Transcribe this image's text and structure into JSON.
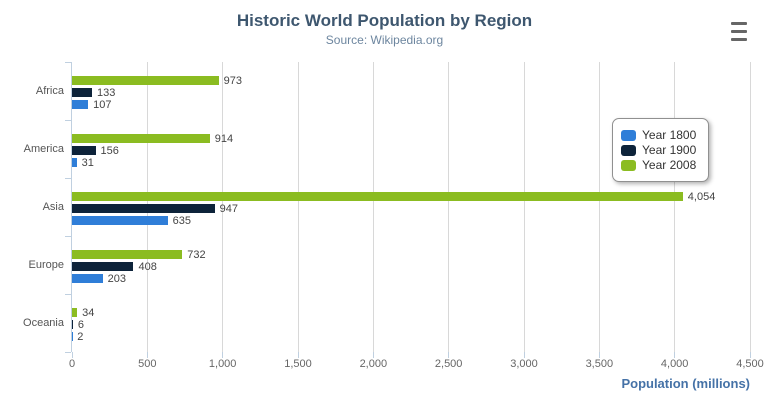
{
  "chart": {
    "title": "Historic World Population by Region",
    "subtitle": "Source: Wikipedia.org",
    "xlabel": "Population (millions)"
  },
  "chart_data": {
    "type": "bar",
    "orientation": "horizontal",
    "title": "Historic World Population by Region",
    "subtitle": "Source: Wikipedia.org",
    "xlabel": "Population (millions)",
    "ylabel": "",
    "categories": [
      "Africa",
      "America",
      "Asia",
      "Europe",
      "Oceania"
    ],
    "series": [
      {
        "name": "Year 1800",
        "color": "#2f7ed8",
        "values": [
          107,
          31,
          635,
          203,
          2
        ]
      },
      {
        "name": "Year 1900",
        "color": "#0d233a",
        "values": [
          133,
          156,
          947,
          408,
          6
        ]
      },
      {
        "name": "Year 2008",
        "color": "#8bbc21",
        "values": [
          973,
          914,
          4054,
          732,
          34
        ]
      }
    ],
    "bar_order_top_to_bottom": [
      "Year 2008",
      "Year 1900",
      "Year 1800"
    ],
    "xlim": [
      0,
      4500
    ],
    "xticks": [
      0,
      500,
      1000,
      1500,
      2000,
      2500,
      3000,
      3500,
      4000,
      4500
    ],
    "grid": true,
    "legend_position": "right",
    "data_labels": true
  },
  "colors": {
    "title": "#3E576F",
    "subtitle": "#6D869F",
    "axis_title": "#4572A7",
    "tick_label": "#666666",
    "gridline": "#D8D8D8",
    "axis_line": "#C0D0E0",
    "menu_icon": "#666666"
  }
}
